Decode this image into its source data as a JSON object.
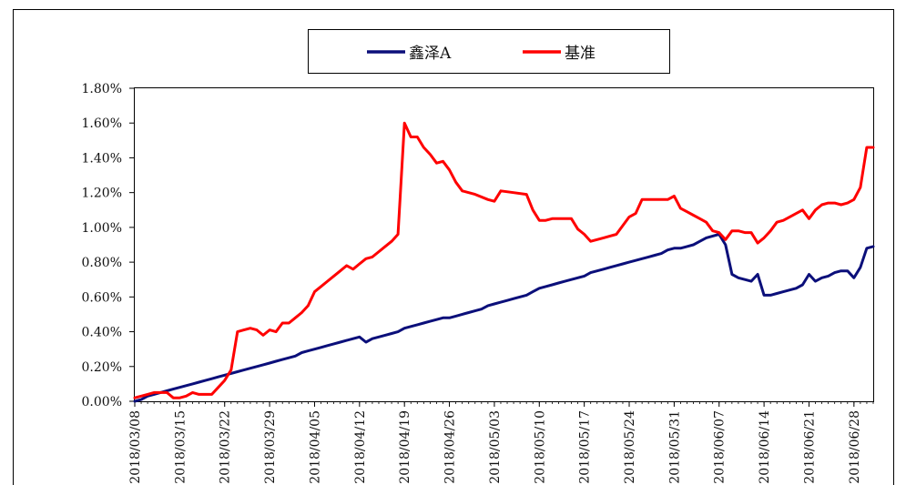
{
  "chart_data": {
    "type": "line",
    "title": "",
    "xlabel": "",
    "ylabel": "",
    "ylim": [
      0,
      0.018
    ],
    "yticks": [
      0,
      0.002,
      0.004,
      0.006,
      0.008,
      0.01,
      0.012,
      0.014,
      0.016,
      0.018
    ],
    "ytick_labels": [
      "0.00%",
      "0.20%",
      "0.40%",
      "0.60%",
      "0.80%",
      "1.00%",
      "1.20%",
      "1.40%",
      "1.60%",
      "1.80%"
    ],
    "xlim": [
      "2018-03-08",
      "2018-07-01"
    ],
    "xtick_labels": [
      "2018/03/08",
      "2018/03/15",
      "2018/03/22",
      "2018/03/29",
      "2018/04/05",
      "2018/04/12",
      "2018/04/19",
      "2018/04/26",
      "2018/05/03",
      "2018/05/10",
      "2018/05/17",
      "2018/05/24",
      "2018/05/31",
      "2018/06/07",
      "2018/06/14",
      "2018/06/21",
      "2018/06/28"
    ],
    "xticks": [
      "2018-03-08",
      "2018-03-15",
      "2018-03-22",
      "2018-03-29",
      "2018-04-05",
      "2018-04-12",
      "2018-04-19",
      "2018-04-26",
      "2018-05-03",
      "2018-05-10",
      "2018-05-17",
      "2018-05-24",
      "2018-05-31",
      "2018-06-07",
      "2018-06-14",
      "2018-06-21",
      "2018-06-28"
    ],
    "legend_position": "top-center",
    "grid": false,
    "series": [
      {
        "name": "鑫泽A",
        "color": "#0b0f7a",
        "points": [
          [
            "2018-03-08",
            0.0
          ],
          [
            "2018-03-09",
            0.0001
          ],
          [
            "2018-03-10",
            0.0003
          ],
          [
            "2018-03-11",
            0.0004
          ],
          [
            "2018-03-12",
            0.0005
          ],
          [
            "2018-03-13",
            0.0006
          ],
          [
            "2018-03-14",
            0.0007
          ],
          [
            "2018-03-15",
            0.0008
          ],
          [
            "2018-03-16",
            0.0009
          ],
          [
            "2018-03-17",
            0.001
          ],
          [
            "2018-03-18",
            0.0011
          ],
          [
            "2018-03-19",
            0.0012
          ],
          [
            "2018-03-20",
            0.0013
          ],
          [
            "2018-03-21",
            0.0014
          ],
          [
            "2018-03-22",
            0.0015
          ],
          [
            "2018-03-23",
            0.0016
          ],
          [
            "2018-03-24",
            0.0017
          ],
          [
            "2018-03-25",
            0.0018
          ],
          [
            "2018-03-26",
            0.0019
          ],
          [
            "2018-03-27",
            0.002
          ],
          [
            "2018-03-28",
            0.0021
          ],
          [
            "2018-03-29",
            0.0022
          ],
          [
            "2018-03-30",
            0.0023
          ],
          [
            "2018-03-31",
            0.0024
          ],
          [
            "2018-04-01",
            0.0025
          ],
          [
            "2018-04-02",
            0.0026
          ],
          [
            "2018-04-03",
            0.0028
          ],
          [
            "2018-04-04",
            0.0029
          ],
          [
            "2018-04-05",
            0.003
          ],
          [
            "2018-04-06",
            0.0031
          ],
          [
            "2018-04-07",
            0.0032
          ],
          [
            "2018-04-08",
            0.0033
          ],
          [
            "2018-04-09",
            0.0034
          ],
          [
            "2018-04-10",
            0.0035
          ],
          [
            "2018-04-11",
            0.0036
          ],
          [
            "2018-04-12",
            0.0037
          ],
          [
            "2018-04-13",
            0.0034
          ],
          [
            "2018-04-14",
            0.0036
          ],
          [
            "2018-04-15",
            0.0037
          ],
          [
            "2018-04-16",
            0.0038
          ],
          [
            "2018-04-17",
            0.0039
          ],
          [
            "2018-04-18",
            0.004
          ],
          [
            "2018-04-19",
            0.0042
          ],
          [
            "2018-04-20",
            0.0043
          ],
          [
            "2018-04-21",
            0.0044
          ],
          [
            "2018-04-22",
            0.0045
          ],
          [
            "2018-04-23",
            0.0046
          ],
          [
            "2018-04-24",
            0.0047
          ],
          [
            "2018-04-25",
            0.0048
          ],
          [
            "2018-04-26",
            0.0048
          ],
          [
            "2018-04-27",
            0.0049
          ],
          [
            "2018-04-28",
            0.005
          ],
          [
            "2018-04-29",
            0.0051
          ],
          [
            "2018-04-30",
            0.0052
          ],
          [
            "2018-05-01",
            0.0053
          ],
          [
            "2018-05-02",
            0.0055
          ],
          [
            "2018-05-03",
            0.0056
          ],
          [
            "2018-05-04",
            0.0057
          ],
          [
            "2018-05-05",
            0.0058
          ],
          [
            "2018-05-06",
            0.0059
          ],
          [
            "2018-05-07",
            0.006
          ],
          [
            "2018-05-08",
            0.0061
          ],
          [
            "2018-05-09",
            0.0063
          ],
          [
            "2018-05-10",
            0.0065
          ],
          [
            "2018-05-11",
            0.0066
          ],
          [
            "2018-05-12",
            0.0067
          ],
          [
            "2018-05-13",
            0.0068
          ],
          [
            "2018-05-14",
            0.0069
          ],
          [
            "2018-05-15",
            0.007
          ],
          [
            "2018-05-16",
            0.0071
          ],
          [
            "2018-05-17",
            0.0072
          ],
          [
            "2018-05-18",
            0.0074
          ],
          [
            "2018-05-19",
            0.0075
          ],
          [
            "2018-05-20",
            0.0076
          ],
          [
            "2018-05-21",
            0.0077
          ],
          [
            "2018-05-22",
            0.0078
          ],
          [
            "2018-05-23",
            0.0079
          ],
          [
            "2018-05-24",
            0.008
          ],
          [
            "2018-05-25",
            0.0081
          ],
          [
            "2018-05-26",
            0.0082
          ],
          [
            "2018-05-27",
            0.0083
          ],
          [
            "2018-05-28",
            0.0084
          ],
          [
            "2018-05-29",
            0.0085
          ],
          [
            "2018-05-30",
            0.0087
          ],
          [
            "2018-05-31",
            0.0088
          ],
          [
            "2018-06-01",
            0.0088
          ],
          [
            "2018-06-02",
            0.0089
          ],
          [
            "2018-06-03",
            0.009
          ],
          [
            "2018-06-04",
            0.0092
          ],
          [
            "2018-06-05",
            0.0094
          ],
          [
            "2018-06-06",
            0.0095
          ],
          [
            "2018-06-07",
            0.0096
          ],
          [
            "2018-06-08",
            0.009
          ],
          [
            "2018-06-09",
            0.0073
          ],
          [
            "2018-06-10",
            0.0071
          ],
          [
            "2018-06-11",
            0.007
          ],
          [
            "2018-06-12",
            0.0069
          ],
          [
            "2018-06-13",
            0.0073
          ],
          [
            "2018-06-14",
            0.0061
          ],
          [
            "2018-06-15",
            0.0061
          ],
          [
            "2018-06-16",
            0.0062
          ],
          [
            "2018-06-17",
            0.0063
          ],
          [
            "2018-06-18",
            0.0064
          ],
          [
            "2018-06-19",
            0.0065
          ],
          [
            "2018-06-20",
            0.0067
          ],
          [
            "2018-06-21",
            0.0073
          ],
          [
            "2018-06-22",
            0.0069
          ],
          [
            "2018-06-23",
            0.0071
          ],
          [
            "2018-06-24",
            0.0072
          ],
          [
            "2018-06-25",
            0.0074
          ],
          [
            "2018-06-26",
            0.0075
          ],
          [
            "2018-06-27",
            0.0075
          ],
          [
            "2018-06-28",
            0.0071
          ],
          [
            "2018-06-29",
            0.0077
          ],
          [
            "2018-06-30",
            0.0088
          ],
          [
            "2018-07-01",
            0.0089
          ]
        ]
      },
      {
        "name": "基准",
        "color": "#ff0000",
        "points": [
          [
            "2018-03-08",
            0.0002
          ],
          [
            "2018-03-09",
            0.0003
          ],
          [
            "2018-03-10",
            0.0004
          ],
          [
            "2018-03-11",
            0.0005
          ],
          [
            "2018-03-12",
            0.0005
          ],
          [
            "2018-03-13",
            0.0005
          ],
          [
            "2018-03-14",
            0.0002
          ],
          [
            "2018-03-15",
            0.0002
          ],
          [
            "2018-03-16",
            0.0003
          ],
          [
            "2018-03-17",
            0.0005
          ],
          [
            "2018-03-18",
            0.0004
          ],
          [
            "2018-03-19",
            0.0004
          ],
          [
            "2018-03-20",
            0.0004
          ],
          [
            "2018-03-21",
            0.0008
          ],
          [
            "2018-03-22",
            0.0012
          ],
          [
            "2018-03-23",
            0.0018
          ],
          [
            "2018-03-24",
            0.004
          ],
          [
            "2018-03-25",
            0.0041
          ],
          [
            "2018-03-26",
            0.0042
          ],
          [
            "2018-03-27",
            0.0041
          ],
          [
            "2018-03-28",
            0.0038
          ],
          [
            "2018-03-29",
            0.0041
          ],
          [
            "2018-03-30",
            0.004
          ],
          [
            "2018-03-31",
            0.0045
          ],
          [
            "2018-04-01",
            0.0045
          ],
          [
            "2018-04-02",
            0.0048
          ],
          [
            "2018-04-03",
            0.0051
          ],
          [
            "2018-04-04",
            0.0055
          ],
          [
            "2018-04-05",
            0.0063
          ],
          [
            "2018-04-06",
            0.0066
          ],
          [
            "2018-04-07",
            0.0069
          ],
          [
            "2018-04-08",
            0.0072
          ],
          [
            "2018-04-09",
            0.0075
          ],
          [
            "2018-04-10",
            0.0078
          ],
          [
            "2018-04-11",
            0.0076
          ],
          [
            "2018-04-12",
            0.0079
          ],
          [
            "2018-04-13",
            0.0082
          ],
          [
            "2018-04-14",
            0.0083
          ],
          [
            "2018-04-15",
            0.0086
          ],
          [
            "2018-04-16",
            0.0089
          ],
          [
            "2018-04-17",
            0.0092
          ],
          [
            "2018-04-18",
            0.0096
          ],
          [
            "2018-04-19",
            0.016
          ],
          [
            "2018-04-20",
            0.0152
          ],
          [
            "2018-04-21",
            0.0152
          ],
          [
            "2018-04-22",
            0.0146
          ],
          [
            "2018-04-23",
            0.0142
          ],
          [
            "2018-04-24",
            0.0137
          ],
          [
            "2018-04-25",
            0.0138
          ],
          [
            "2018-04-26",
            0.0133
          ],
          [
            "2018-04-27",
            0.0126
          ],
          [
            "2018-04-28",
            0.0121
          ],
          [
            "2018-04-30",
            0.0119
          ],
          [
            "2018-05-02",
            0.0116
          ],
          [
            "2018-05-03",
            0.0115
          ],
          [
            "2018-05-04",
            0.0121
          ],
          [
            "2018-05-06",
            0.012
          ],
          [
            "2018-05-08",
            0.0119
          ],
          [
            "2018-05-09",
            0.011
          ],
          [
            "2018-05-10",
            0.0104
          ],
          [
            "2018-05-11",
            0.0104
          ],
          [
            "2018-05-12",
            0.0105
          ],
          [
            "2018-05-14",
            0.0105
          ],
          [
            "2018-05-15",
            0.0105
          ],
          [
            "2018-05-16",
            0.0099
          ],
          [
            "2018-05-17",
            0.0096
          ],
          [
            "2018-05-18",
            0.0092
          ],
          [
            "2018-05-19",
            0.0093
          ],
          [
            "2018-05-20",
            0.0094
          ],
          [
            "2018-05-21",
            0.0095
          ],
          [
            "2018-05-22",
            0.0096
          ],
          [
            "2018-05-24",
            0.0106
          ],
          [
            "2018-05-25",
            0.0108
          ],
          [
            "2018-05-26",
            0.0116
          ],
          [
            "2018-05-27",
            0.0116
          ],
          [
            "2018-05-28",
            0.0116
          ],
          [
            "2018-05-29",
            0.0116
          ],
          [
            "2018-05-30",
            0.0116
          ],
          [
            "2018-05-31",
            0.0118
          ],
          [
            "2018-06-01",
            0.0111
          ],
          [
            "2018-06-02",
            0.0109
          ],
          [
            "2018-06-03",
            0.0107
          ],
          [
            "2018-06-04",
            0.0105
          ],
          [
            "2018-06-05",
            0.0103
          ],
          [
            "2018-06-06",
            0.0098
          ],
          [
            "2018-06-07",
            0.0097
          ],
          [
            "2018-06-08",
            0.0093
          ],
          [
            "2018-06-09",
            0.0098
          ],
          [
            "2018-06-10",
            0.0098
          ],
          [
            "2018-06-11",
            0.0097
          ],
          [
            "2018-06-12",
            0.0097
          ],
          [
            "2018-06-13",
            0.0091
          ],
          [
            "2018-06-14",
            0.0094
          ],
          [
            "2018-06-15",
            0.0098
          ],
          [
            "2018-06-16",
            0.0103
          ],
          [
            "2018-06-17",
            0.0104
          ],
          [
            "2018-06-18",
            0.0106
          ],
          [
            "2018-06-19",
            0.0108
          ],
          [
            "2018-06-20",
            0.011
          ],
          [
            "2018-06-21",
            0.0105
          ],
          [
            "2018-06-22",
            0.011
          ],
          [
            "2018-06-23",
            0.0113
          ],
          [
            "2018-06-24",
            0.0114
          ],
          [
            "2018-06-25",
            0.0114
          ],
          [
            "2018-06-26",
            0.0113
          ],
          [
            "2018-06-27",
            0.0114
          ],
          [
            "2018-06-28",
            0.0116
          ],
          [
            "2018-06-29",
            0.0123
          ],
          [
            "2018-06-30",
            0.0146
          ],
          [
            "2018-07-01",
            0.0146
          ]
        ]
      }
    ]
  }
}
